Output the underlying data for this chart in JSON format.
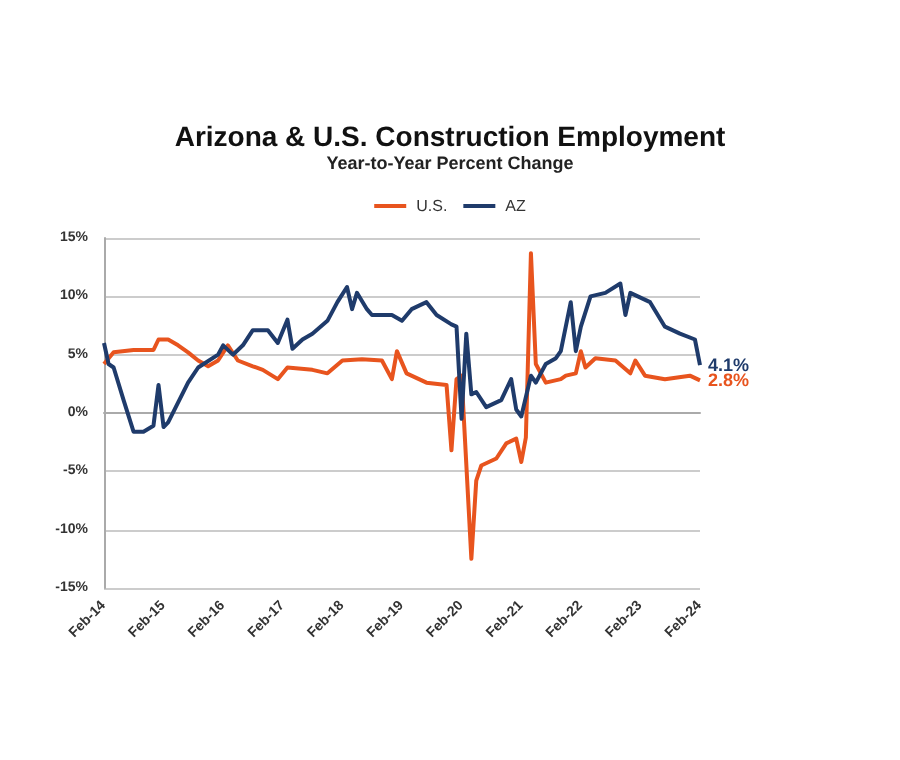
{
  "chart_data": {
    "type": "line",
    "title": "Arizona & U.S. Construction Employment",
    "subtitle": "Year-to-Year Percent Change",
    "series": [
      {
        "name": "U.S.",
        "color": "#e8541e",
        "x": [
          "2014-02",
          "2014-04",
          "2014-08",
          "2014-12",
          "2015-01",
          "2015-03",
          "2015-05",
          "2015-07",
          "2015-09",
          "2015-11",
          "2016-01",
          "2016-03",
          "2016-05",
          "2016-08",
          "2016-10",
          "2017-01",
          "2017-03",
          "2017-08",
          "2017-11",
          "2018-02",
          "2018-06",
          "2018-10",
          "2018-12",
          "2019-01",
          "2019-03",
          "2019-07",
          "2019-11",
          "2019-12",
          "2020-01",
          "2020-02",
          "2020-04",
          "2020-05",
          "2020-06",
          "2020-09",
          "2020-11",
          "2021-01",
          "2021-02",
          "2021-03",
          "2021-04",
          "2021-05",
          "2021-07",
          "2021-10",
          "2021-11",
          "2022-01",
          "2022-02",
          "2022-03",
          "2022-05",
          "2022-09",
          "2022-12",
          "2023-01",
          "2023-03",
          "2023-07",
          "2023-12",
          "2024-02"
        ],
        "values": [
          4.2,
          5.2,
          5.4,
          5.4,
          6.3,
          6.3,
          5.8,
          5.2,
          4.5,
          4.0,
          4.5,
          5.8,
          4.5,
          4.0,
          3.7,
          2.9,
          3.9,
          3.7,
          3.4,
          4.5,
          4.6,
          4.5,
          2.9,
          5.3,
          3.4,
          2.6,
          2.4,
          -3.2,
          2.9,
          3.2,
          -12.5,
          -5.8,
          -4.5,
          -3.9,
          -2.6,
          -2.2,
          -4.2,
          -2.1,
          13.7,
          4.2,
          2.6,
          2.9,
          3.2,
          3.4,
          5.3,
          3.9,
          4.7,
          4.5,
          3.4,
          4.5,
          3.2,
          2.9,
          3.2,
          2.8
        ]
      },
      {
        "name": "AZ",
        "color": "#1f3b6b",
        "x": [
          "2014-02",
          "2014-03",
          "2014-04",
          "2014-06",
          "2014-08",
          "2014-10",
          "2014-12",
          "2015-01",
          "2015-02",
          "2015-03",
          "2015-07",
          "2015-09",
          "2016-01",
          "2016-02",
          "2016-04",
          "2016-06",
          "2016-08",
          "2016-11",
          "2017-01",
          "2017-03",
          "2017-04",
          "2017-06",
          "2017-08",
          "2017-11",
          "2018-01",
          "2018-03",
          "2018-04",
          "2018-05",
          "2018-07",
          "2018-08",
          "2018-12",
          "2019-02",
          "2019-04",
          "2019-07",
          "2019-09",
          "2019-12",
          "2020-01",
          "2020-02",
          "2020-03",
          "2020-04",
          "2020-05",
          "2020-07",
          "2020-10",
          "2020-12",
          "2021-01",
          "2021-02",
          "2021-04",
          "2021-05",
          "2021-07",
          "2021-09",
          "2021-10",
          "2021-12",
          "2022-01",
          "2022-02",
          "2022-04",
          "2022-07",
          "2022-10",
          "2022-11",
          "2022-12",
          "2023-04",
          "2023-07",
          "2023-10",
          "2024-01",
          "2024-02"
        ],
        "values": [
          6.0,
          4.2,
          3.9,
          1.1,
          -1.6,
          -1.6,
          -1.1,
          2.4,
          -1.2,
          -0.8,
          2.6,
          3.9,
          5.0,
          5.8,
          5.0,
          5.8,
          7.1,
          7.1,
          6.0,
          8.0,
          5.5,
          6.3,
          6.8,
          7.9,
          9.5,
          10.8,
          8.9,
          10.3,
          8.9,
          8.4,
          8.4,
          7.9,
          8.9,
          9.5,
          8.4,
          7.6,
          7.4,
          -0.5,
          6.8,
          1.6,
          1.8,
          0.5,
          1.1,
          2.9,
          0.3,
          -0.3,
          3.2,
          2.6,
          4.2,
          4.7,
          5.3,
          9.5,
          5.3,
          7.4,
          10.0,
          10.3,
          11.1,
          8.4,
          10.3,
          9.5,
          7.4,
          6.8,
          6.3,
          4.1
        ]
      }
    ],
    "xlim": [
      "2014-02",
      "2024-02"
    ],
    "xticks": [
      {
        "value": "2014-02",
        "label": "Feb-14"
      },
      {
        "value": "2015-02",
        "label": "Feb-15"
      },
      {
        "value": "2016-02",
        "label": "Feb-16"
      },
      {
        "value": "2017-02",
        "label": "Feb-17"
      },
      {
        "value": "2018-02",
        "label": "Feb-18"
      },
      {
        "value": "2019-02",
        "label": "Feb-19"
      },
      {
        "value": "2020-02",
        "label": "Feb-20"
      },
      {
        "value": "2021-02",
        "label": "Feb-21"
      },
      {
        "value": "2022-02",
        "label": "Feb-22"
      },
      {
        "value": "2023-02",
        "label": "Feb-23"
      },
      {
        "value": "2024-02",
        "label": "Feb-24"
      }
    ],
    "ylim": [
      -15,
      15
    ],
    "yticks": [
      {
        "value": -15,
        "label": "-15%"
      },
      {
        "value": -10,
        "label": "-10%"
      },
      {
        "value": -5,
        "label": "-5%"
      },
      {
        "value": 0,
        "label": "0%"
      },
      {
        "value": 5,
        "label": "5%"
      },
      {
        "value": 10,
        "label": "10%"
      },
      {
        "value": 15,
        "label": "15%"
      }
    ],
    "annotations": [
      {
        "text": "4.1%",
        "x": "2024-02",
        "y": 4.1
      },
      {
        "text": "2.8%",
        "x": "2024-02",
        "y": 2.8
      }
    ],
    "grid": "y",
    "legend": "top",
    "marker": "none",
    "line_style": "solid"
  }
}
